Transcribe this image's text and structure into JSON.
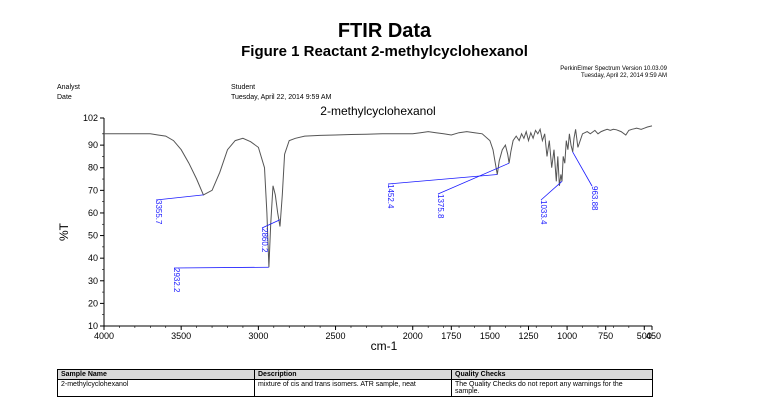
{
  "header": {
    "title": "FTIR Data",
    "subtitle": "Figure 1 Reactant 2-methylcyclohexanol",
    "software": "PerkinElmer Spectrum Version 10.03.09",
    "timestamp": "Tuesday, April 22, 2014 9:59 AM",
    "analyst_label": "Analyst",
    "analyst_value": "Student",
    "date_label": "Date",
    "date_value": "Tuesday, April 22, 2014 9:59 AM"
  },
  "chart_data": {
    "type": "line",
    "title": "2-methylcyclohexanol",
    "xlabel": "cm-1",
    "ylabel": "%T",
    "xlim": [
      4000,
      450
    ],
    "ylim": [
      10,
      102
    ],
    "x_ticks": [
      4000,
      3500,
      3000,
      2500,
      2000,
      1750,
      1500,
      1250,
      1000,
      750,
      500,
      450
    ],
    "x_tick_labels": [
      "4000",
      "3500",
      "3000",
      "2500",
      "2000",
      "1750",
      "1500",
      "1250",
      "1000",
      "750",
      "500",
      "450"
    ],
    "y_ticks": [
      10,
      20,
      30,
      40,
      50,
      60,
      70,
      80,
      90,
      102
    ],
    "y_tick_labels": [
      "10",
      "20",
      "30",
      "40",
      "50",
      "60",
      "70",
      "80",
      "90",
      "102"
    ],
    "grid": false,
    "series_color": "#555555",
    "annotation_color": "#1a1aff",
    "series": [
      {
        "x": [
          4000,
          3800,
          3700,
          3650,
          3600,
          3550,
          3500,
          3450,
          3400,
          3356,
          3300,
          3250,
          3200,
          3150,
          3100,
          3050,
          3000,
          2960,
          2945,
          2932,
          2920,
          2905,
          2890,
          2875,
          2860,
          2845,
          2830,
          2800,
          2760,
          2700,
          2600,
          2500,
          2400,
          2300,
          2200,
          2100,
          2000,
          1950,
          1900,
          1850,
          1800,
          1750,
          1700,
          1650,
          1600,
          1550,
          1500,
          1480,
          1465,
          1452,
          1440,
          1420,
          1400,
          1385,
          1376,
          1365,
          1350,
          1330,
          1310,
          1295,
          1280,
          1265,
          1250,
          1235,
          1220,
          1205,
          1190,
          1175,
          1160,
          1145,
          1130,
          1115,
          1100,
          1085,
          1070,
          1060,
          1050,
          1040,
          1033,
          1025,
          1015,
          1005,
          995,
          985,
          975,
          964,
          955,
          945,
          930,
          900,
          870,
          850,
          820,
          800,
          780,
          760,
          740,
          720,
          700,
          680,
          650,
          620,
          600,
          580,
          550,
          520,
          500,
          480,
          450
        ],
        "y": [
          95,
          95,
          95,
          94.5,
          94,
          92,
          88,
          82,
          75,
          68,
          70,
          78,
          88,
          92,
          93,
          91.5,
          89,
          80,
          60,
          36,
          55,
          72,
          68,
          60,
          54,
          68,
          86,
          92,
          93,
          94,
          94.3,
          94.5,
          94.7,
          94.8,
          95,
          95,
          95,
          95.5,
          96,
          95.5,
          95,
          94.5,
          95.5,
          96,
          95.5,
          95,
          92,
          88,
          82,
          77,
          83,
          88,
          90,
          86,
          82,
          87,
          92,
          94,
          92,
          95,
          93,
          96,
          92,
          95.5,
          93,
          96.5,
          95,
          97,
          92,
          95,
          85,
          92,
          80,
          88,
          74,
          85,
          72,
          77,
          74,
          85,
          82,
          92,
          88,
          95,
          90,
          87,
          93,
          97,
          89,
          95,
          96,
          95,
          96.5,
          95,
          96,
          96.5,
          97,
          96.5,
          97,
          96.8,
          96,
          94.5,
          96.5,
          97,
          97.5,
          97,
          97.5,
          98,
          98.5
        ]
      }
    ],
    "annotations": [
      {
        "x": 3356,
        "y": 68,
        "label": "3355.7"
      },
      {
        "x": 2932,
        "y": 36,
        "label": "2932.2"
      },
      {
        "x": 2860,
        "y": 57,
        "label": "2860.2"
      },
      {
        "x": 1452,
        "y": 77,
        "label": "1452.4"
      },
      {
        "x": 1376,
        "y": 82,
        "label": "1375.8"
      },
      {
        "x": 1033,
        "y": 74,
        "label": "1033.4"
      },
      {
        "x": 964,
        "y": 87,
        "label": "963.88"
      }
    ]
  },
  "table": {
    "headers": [
      "Sample Name",
      "Description",
      "Quality Checks"
    ],
    "row": [
      "2-methylcyclohexanol",
      "mixture of cis and trans isomers. ATR sample, neat",
      "The Quality Checks do not report any warnings for the sample."
    ]
  }
}
